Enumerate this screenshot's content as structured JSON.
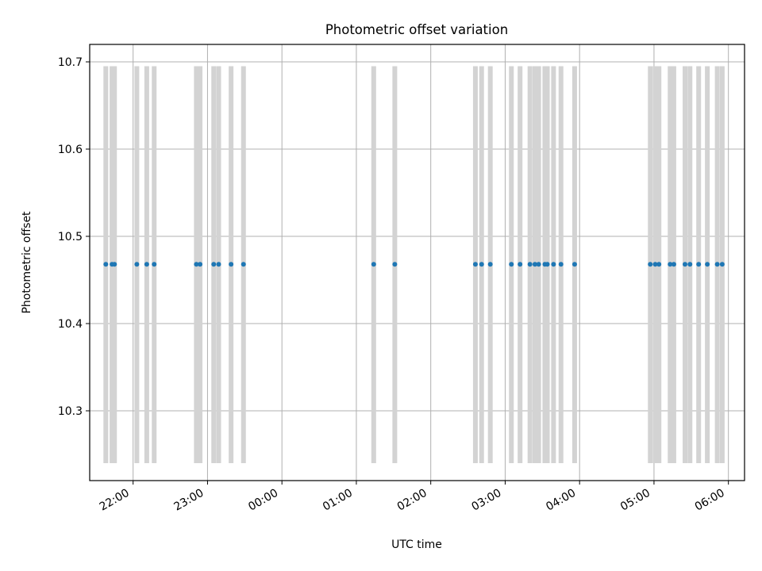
{
  "chart_data": {
    "type": "scatter",
    "title": "Photometric offset variation",
    "xlabel": "UTC time",
    "ylabel": "Photometric offset",
    "grid": true,
    "x_axis_type": "time",
    "x_start_date": "2024-01-01",
    "xlim": [
      "21:25",
      "06:13"
    ],
    "ylim": [
      10.22,
      10.72
    ],
    "x_ticks": [
      {
        "time": "22:00",
        "label": "22:00"
      },
      {
        "time": "23:00",
        "label": "23:00"
      },
      {
        "time": "00:00",
        "label": "00:00"
      },
      {
        "time": "01:00",
        "label": "01:00"
      },
      {
        "time": "02:00",
        "label": "02:00"
      },
      {
        "time": "03:00",
        "label": "03:00"
      },
      {
        "time": "04:00",
        "label": "04:00"
      },
      {
        "time": "05:00",
        "label": "05:00"
      },
      {
        "time": "06:00",
        "label": "06:00"
      }
    ],
    "y_ticks": [
      {
        "value": 10.3,
        "label": "10.3"
      },
      {
        "value": 10.4,
        "label": "10.4"
      },
      {
        "value": 10.5,
        "label": "10.5"
      },
      {
        "value": 10.6,
        "label": "10.6"
      },
      {
        "value": 10.7,
        "label": "10.7"
      }
    ],
    "band_range": [
      10.24,
      10.695
    ],
    "offset_value": 10.468,
    "times": [
      "21:38",
      "21:43",
      "21:45",
      "22:03",
      "22:11",
      "22:17",
      "22:51",
      "22:54",
      "23:05",
      "23:09",
      "23:19",
      "23:29",
      "01:14",
      "01:31",
      "02:36",
      "02:41",
      "02:48",
      "03:05",
      "03:12",
      "03:20",
      "03:24",
      "03:27",
      "03:32",
      "03:34",
      "03:39",
      "03:45",
      "03:56",
      "04:57",
      "05:01",
      "05:04",
      "05:13",
      "05:16",
      "05:25",
      "05:29",
      "05:36",
      "05:43",
      "05:51",
      "05:55"
    ],
    "colors": {
      "point": "#1f77b4",
      "band": "#d3d3d3",
      "grid": "#b0b0b0"
    }
  }
}
